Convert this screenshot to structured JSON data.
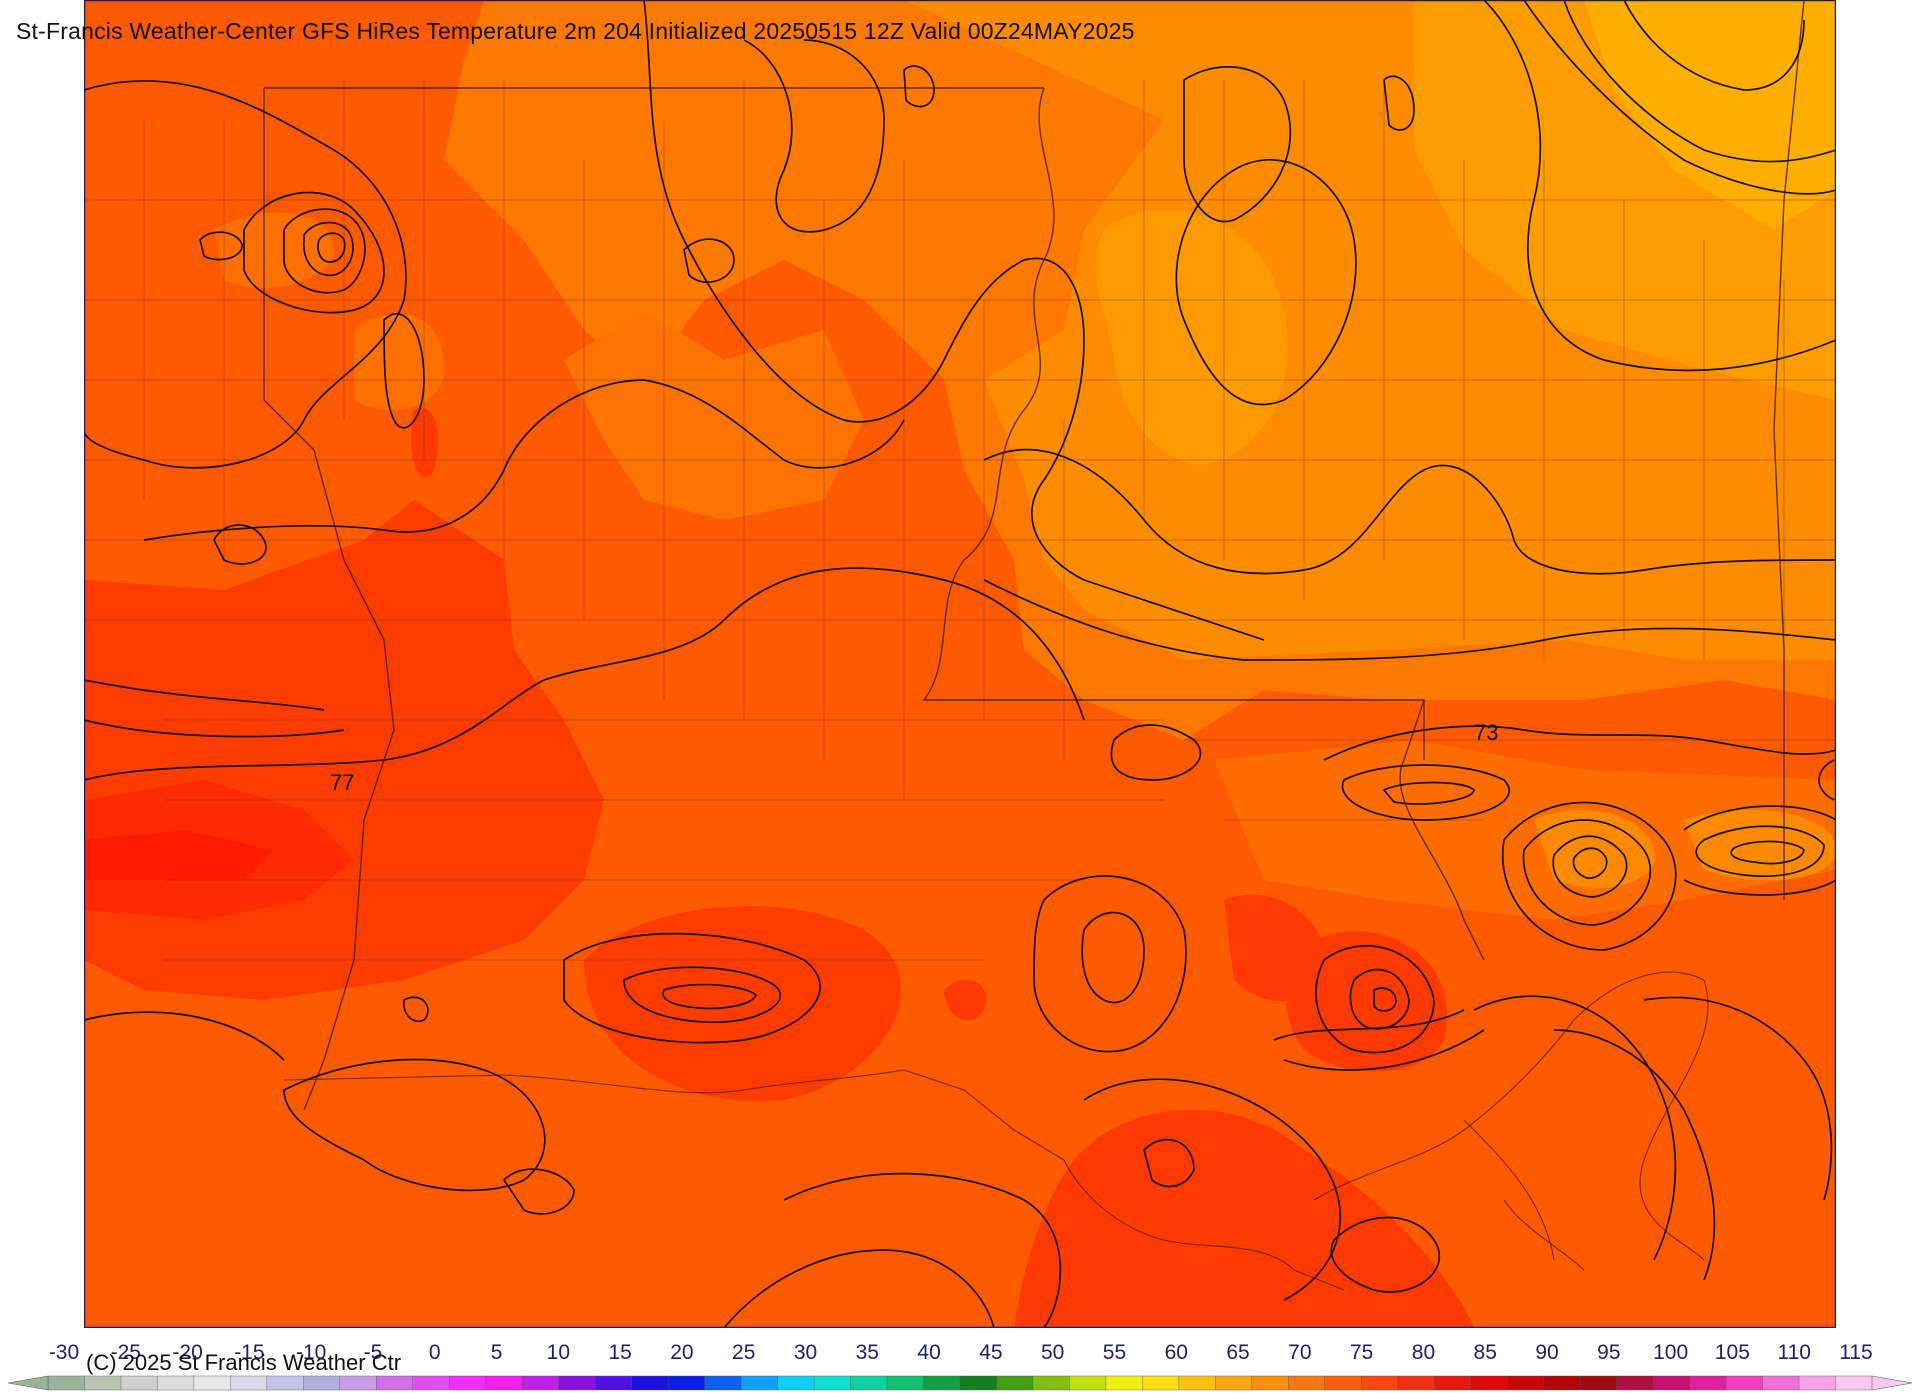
{
  "title": "St-Francis Weather-Center GFS HiRes Temperature 2m  204 Initialized 20250515 12Z Valid 00Z24MAY2025",
  "copyright": "(C) 2025 St Francis Weather Ctr",
  "contour_labels": [
    "77",
    "73"
  ],
  "colorbar": {
    "ticks": [
      "-30",
      "-25",
      "-20",
      "-15",
      "-10",
      "-5",
      "0",
      "5",
      "10",
      "15",
      "20",
      "25",
      "30",
      "35",
      "40",
      "45",
      "50",
      "55",
      "60",
      "65",
      "70",
      "75",
      "80",
      "85",
      "90",
      "95",
      "100",
      "105",
      "110",
      "115"
    ],
    "colors": [
      "#9ab39a",
      "#b8c4b0",
      "#cfcfcf",
      "#dcdcdc",
      "#e6e6e6",
      "#d9d9ea",
      "#c4c4e8",
      "#b0b0e0",
      "#c89ce8",
      "#d070e8",
      "#e050f0",
      "#f030f8",
      "#f020f0",
      "#c020e8",
      "#8a10e0",
      "#5010e0",
      "#2010e0",
      "#0a20e8",
      "#1060f0",
      "#10a0f8",
      "#10d0f8",
      "#10e0d0",
      "#10d0a0",
      "#10c070",
      "#10a040",
      "#108020",
      "#40a010",
      "#80c010",
      "#c0e010",
      "#f0f010",
      "#f8e010",
      "#f8c010",
      "#f8a810",
      "#f89010",
      "#f87810",
      "#f86010",
      "#f84810",
      "#f03010",
      "#e81810",
      "#e00808",
      "#c80808",
      "#b00808",
      "#a00810",
      "#b01040",
      "#c81070",
      "#e020a0",
      "#f040c0",
      "#f070d8",
      "#f8a0e8",
      "#f8c8f0"
    ]
  },
  "palette": {
    "t70": "#ff8c00",
    "t72": "#ff7a00",
    "t74": "#ff6a00",
    "t76": "#ff5200",
    "t78": "#ff3a00",
    "t80": "#ff2400",
    "t66": "#ffa000",
    "t64": "#ffb000",
    "border": "#1a1a6e"
  }
}
